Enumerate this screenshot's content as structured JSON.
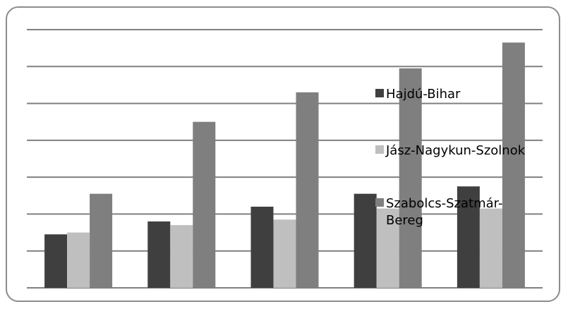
{
  "chart_data": {
    "type": "bar",
    "categories": [
      "",
      "",
      "",
      "",
      ""
    ],
    "series": [
      {
        "name": "Hajdú-Bihar",
        "color": "#3f3f3f",
        "values": [
          1.45,
          1.8,
          2.2,
          2.55,
          2.75
        ]
      },
      {
        "name": "Jász-Nagykun-Szolnok",
        "color": "#bfbfbf",
        "values": [
          1.5,
          1.7,
          1.85,
          2.15,
          2.15
        ]
      },
      {
        "name": "Szabolcs-Szatmár-Bereg",
        "color": "#7f7f7f",
        "values": [
          2.55,
          4.5,
          5.3,
          5.95,
          6.65
        ]
      }
    ],
    "ylim": [
      0,
      7
    ],
    "gridlines": [
      1,
      2,
      3,
      4,
      5,
      6,
      7
    ],
    "grid": true,
    "title": "",
    "xlabel": "",
    "ylabel": "",
    "legend": {
      "position": "right-inside",
      "entries": [
        {
          "lines": [
            "Hajdú-Bihar"
          ]
        },
        {
          "lines": [
            "Jász-Nagykun-Szolnok"
          ]
        },
        {
          "lines": [
            "Szabolcs-Szatmár-",
            "Bereg"
          ]
        }
      ]
    }
  }
}
